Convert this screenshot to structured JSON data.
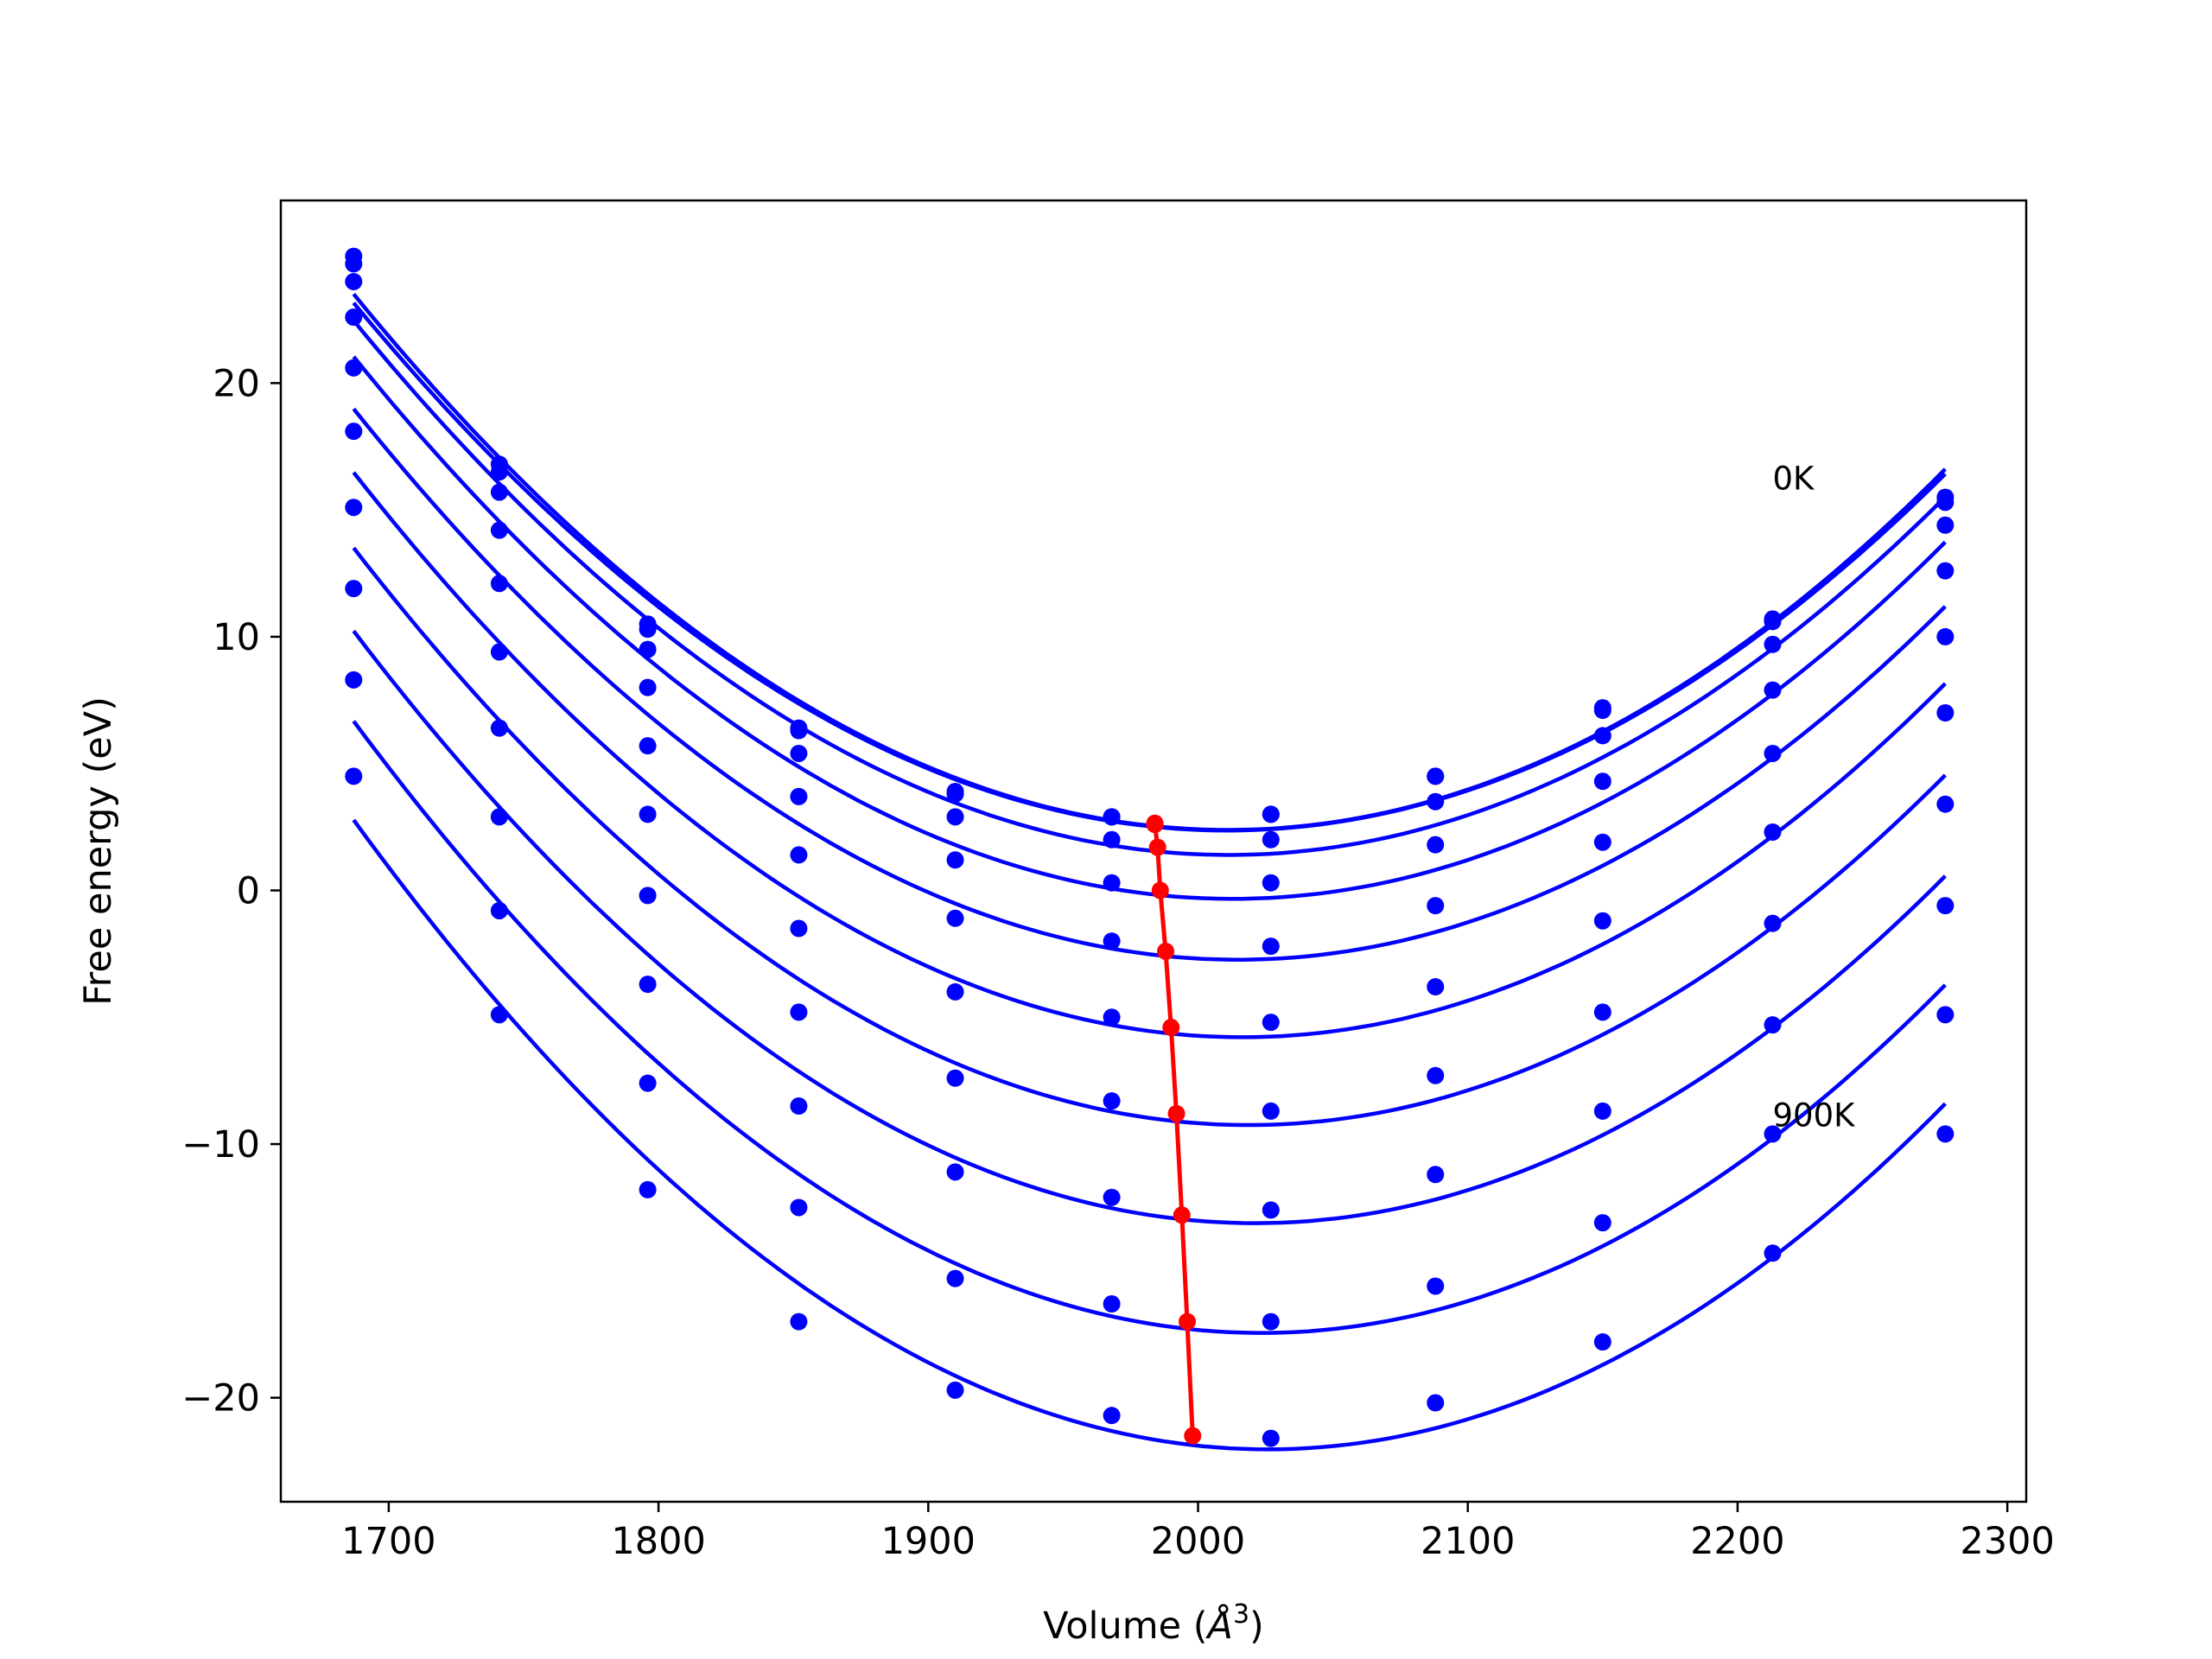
{
  "chart_data": {
    "type": "line",
    "xlabel": "Volume (",
    "xlabel_math": "Å",
    "xlabel_sup": "3",
    "xlabel_close": ")",
    "ylabel": "Free energy (eV)",
    "xlim": [
      1660,
      2307
    ],
    "ylim": [
      -24.1,
      27.2
    ],
    "xticks": [
      1700,
      1800,
      1900,
      2000,
      2100,
      2200,
      2300
    ],
    "yticks": [
      -20,
      -10,
      0,
      10,
      20
    ],
    "grid": false,
    "legend": "none",
    "colors": {
      "curves": "#0000ff",
      "minimum_line": "#ff0000",
      "axes": "#000000"
    },
    "annotations": [
      {
        "text": "0K",
        "x": 2213,
        "y": 15.8
      },
      {
        "text": "900K",
        "x": 2213,
        "y": -9.3
      }
    ],
    "volumes": [
      1687,
      1741,
      1796,
      1852,
      1910,
      1968,
      2027,
      2088,
      2150,
      2213,
      2277
    ],
    "series": [
      {
        "values": [
          25.0,
          16.8,
          10.5,
          6.4,
          3.9,
          2.9,
          3.0,
          4.5,
          7.2,
          10.7,
          15.5
        ],
        "minimum": [
          1984,
          2.65
        ]
      },
      {
        "values": [
          24.7,
          16.5,
          10.3,
          6.3,
          3.8,
          2.9,
          3.0,
          4.5,
          7.1,
          10.6,
          15.3
        ],
        "minimum": [
          1984,
          2.6
        ]
      },
      {
        "values": [
          24.0,
          15.7,
          9.5,
          5.4,
          2.9,
          2.0,
          2.0,
          3.5,
          6.1,
          9.7,
          14.4
        ],
        "minimum": [
          1985,
          1.7
        ]
      },
      {
        "values": [
          22.6,
          14.2,
          8.0,
          3.7,
          1.2,
          0.3,
          0.3,
          1.8,
          4.3,
          7.9,
          12.6
        ],
        "minimum": [
          1986,
          0.0
        ]
      },
      {
        "values": [
          20.6,
          12.1,
          5.7,
          1.4,
          -1.1,
          -2.0,
          -2.2,
          -0.6,
          1.9,
          5.4,
          10.0
        ],
        "minimum": [
          1988,
          -2.4
        ]
      },
      {
        "values": [
          18.1,
          9.4,
          3.0,
          -1.5,
          -4.0,
          -5.0,
          -5.2,
          -3.8,
          -1.2,
          2.3,
          7.0
        ],
        "minimum": [
          1990,
          -5.4
        ]
      },
      {
        "values": [
          15.1,
          6.4,
          -0.2,
          -4.8,
          -7.4,
          -8.3,
          -8.7,
          -7.3,
          -4.8,
          -1.3,
          3.4
        ],
        "minimum": [
          1992,
          -8.8
        ]
      },
      {
        "values": [
          11.9,
          2.9,
          -3.7,
          -8.5,
          -11.1,
          -12.1,
          -12.6,
          -11.2,
          -8.7,
          -5.3,
          -0.6
        ],
        "minimum": [
          1994,
          -12.8
        ]
      },
      {
        "values": [
          8.3,
          -0.8,
          -7.6,
          -12.5,
          -15.3,
          -16.3,
          -17.0,
          -15.6,
          -13.1,
          -9.6,
          -4.9
        ],
        "minimum": [
          1996,
          -17.0
        ]
      },
      {
        "values": [
          4.5,
          -4.9,
          -11.8,
          -17.0,
          -19.7,
          -20.7,
          -21.6,
          -20.2,
          -17.8,
          -14.3,
          -9.6
        ],
        "minimum": [
          1998,
          -21.5
        ]
      }
    ]
  }
}
